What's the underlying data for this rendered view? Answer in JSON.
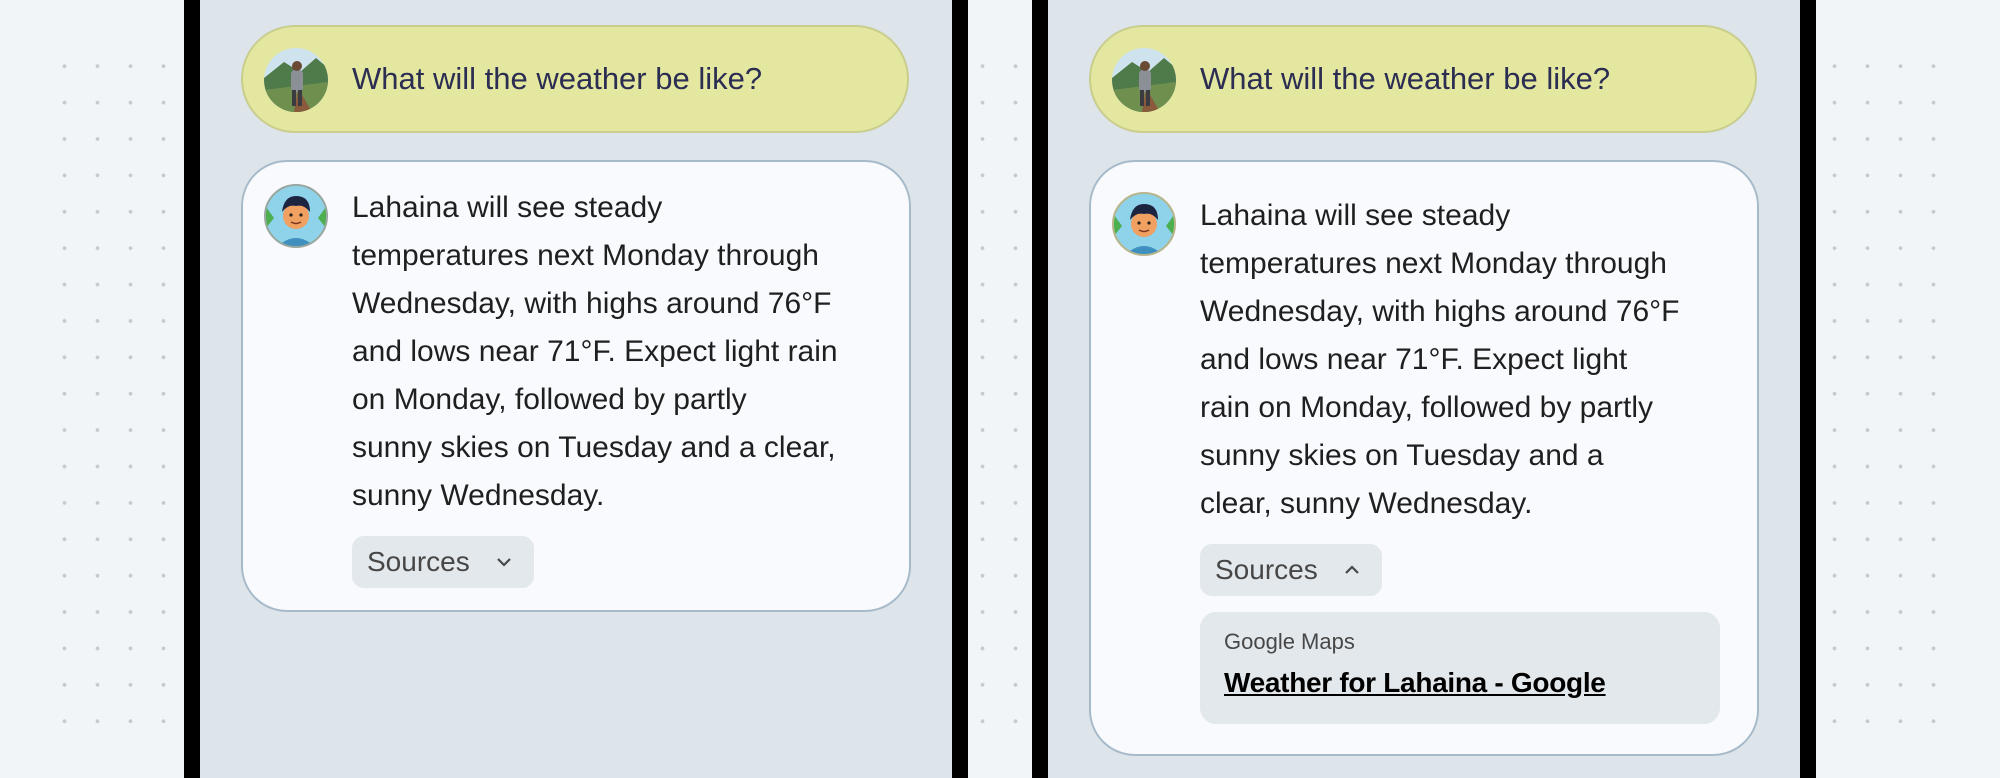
{
  "colors": {
    "panel_bg": "#dde4ea",
    "user_bubble": "#e4e79f",
    "bot_bubble": "#f8fafd",
    "chip": "#e3e8ec"
  },
  "left": {
    "question": "What will the weather be like?",
    "answer_lines": [
      "Lahaina will see steady",
      "temperatures next Monday through",
      "Wednesday, with highs around 76°F",
      "and lows near 71°F. Expect light rain",
      "on Monday, followed by partly",
      "sunny skies on Tuesday and a clear,",
      "sunny Wednesday."
    ],
    "sources_label": "Sources",
    "sources_icon": "chevron-down-icon"
  },
  "right": {
    "question": "What will the weather be like?",
    "answer_lines": [
      "Lahaina will see steady",
      "temperatures next Monday through",
      "Wednesday, with highs around 76°F",
      "and lows near 71°F. Expect light",
      "rain on Monday, followed by partly",
      "sunny skies on Tuesday and a",
      "clear, sunny Wednesday."
    ],
    "sources_label": "Sources",
    "sources_icon": "chevron-up-icon",
    "source": {
      "site": "Google Maps",
      "title": "Weather for Lahaina - Google"
    }
  }
}
